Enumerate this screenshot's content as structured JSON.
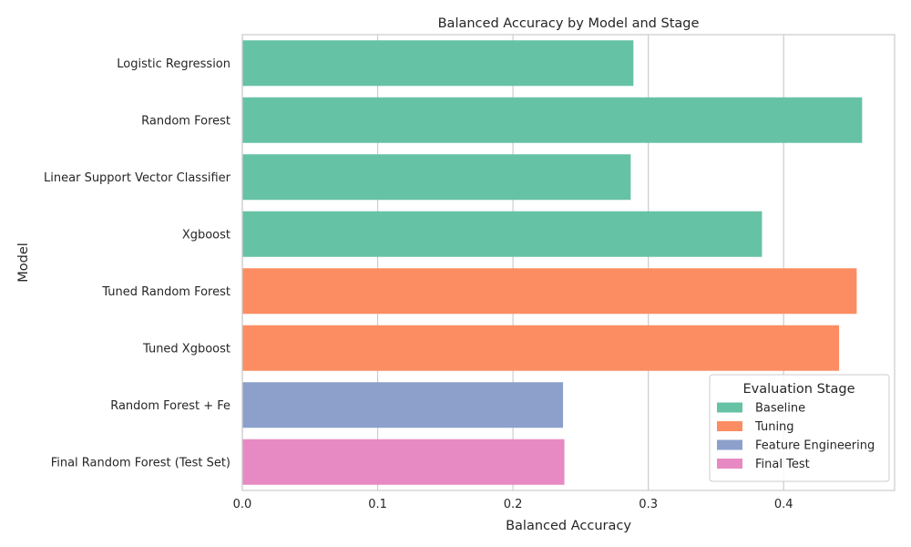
{
  "chart_data": {
    "type": "bar",
    "orientation": "horizontal",
    "title": "Balanced Accuracy by Model and Stage",
    "xlabel": "Balanced Accuracy",
    "ylabel": "Model",
    "xlim": [
      0,
      0.482
    ],
    "xticks": [
      0.0,
      0.1,
      0.2,
      0.3,
      0.4
    ],
    "xtick_labels": [
      "0.0",
      "0.1",
      "0.2",
      "0.3",
      "0.4"
    ],
    "grid": "vertical",
    "categories": [
      "Logistic Regression",
      "Random Forest",
      "Linear Support Vector Classifier",
      "Xgboost",
      "Tuned Random Forest",
      "Tuned Xgboost",
      "Random Forest + Fe",
      "Final Random Forest (Test Set)"
    ],
    "values": [
      0.289,
      0.458,
      0.287,
      0.384,
      0.454,
      0.441,
      0.237,
      0.238
    ],
    "stage": [
      "Baseline",
      "Baseline",
      "Baseline",
      "Baseline",
      "Tuning",
      "Tuning",
      "Feature Engineering",
      "Final Test"
    ],
    "legend": {
      "title": "Evaluation Stage",
      "placement": "lower-right",
      "entries": [
        {
          "label": "Baseline",
          "color": "#66c2a5"
        },
        {
          "label": "Tuning",
          "color": "#fc8d62"
        },
        {
          "label": "Feature Engineering",
          "color": "#8da0cb"
        },
        {
          "label": "Final Test",
          "color": "#e78ac3"
        }
      ]
    }
  }
}
